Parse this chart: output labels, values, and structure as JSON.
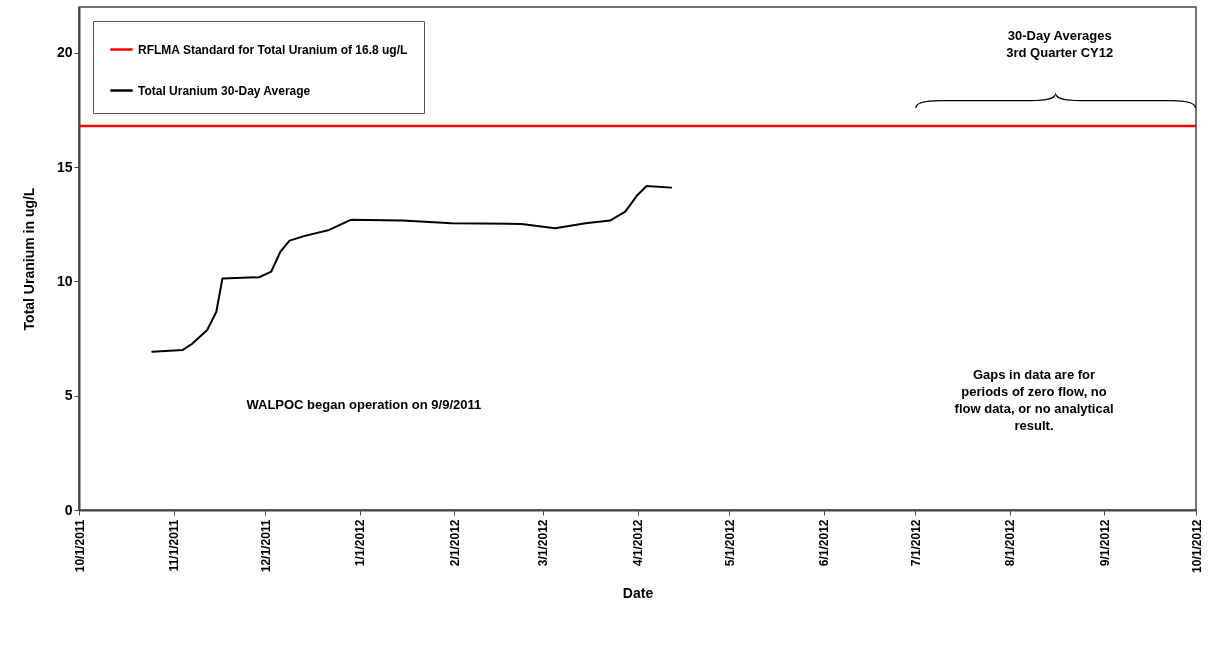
{
  "chart_data": {
    "type": "line",
    "xlabel": "Date",
    "ylabel": "Total Uranium in ug/L",
    "xlim": [
      "2011-10-01",
      "2012-10-01"
    ],
    "ylim": [
      0,
      22
    ],
    "yticks": [
      0,
      5,
      10,
      15,
      20
    ],
    "xticks": [
      {
        "value": "2011-10-01",
        "label": "10/1/2011"
      },
      {
        "value": "2011-11-01",
        "label": "11/1/2011"
      },
      {
        "value": "2011-12-01",
        "label": "12/1/2011"
      },
      {
        "value": "2012-01-01",
        "label": "1/1/2012"
      },
      {
        "value": "2012-02-01",
        "label": "2/1/2012"
      },
      {
        "value": "2012-03-01",
        "label": "3/1/2012"
      },
      {
        "value": "2012-04-01",
        "label": "4/1/2012"
      },
      {
        "value": "2012-05-01",
        "label": "5/1/2012"
      },
      {
        "value": "2012-06-01",
        "label": "6/1/2012"
      },
      {
        "value": "2012-07-01",
        "label": "7/1/2012"
      },
      {
        "value": "2012-08-01",
        "label": "8/1/2012"
      },
      {
        "value": "2012-09-01",
        "label": "9/1/2012"
      },
      {
        "value": "2012-10-01",
        "label": "10/1/2012"
      }
    ],
    "series": [
      {
        "name": "Total Uranium 30-Day Average",
        "color": "#000000",
        "x": [
          "2011-10-25",
          "2011-11-04",
          "2011-11-07",
          "2011-11-12",
          "2011-11-15",
          "2011-11-17",
          "2011-11-29",
          "2011-12-03",
          "2011-12-06",
          "2011-12-09",
          "2011-12-14",
          "2011-12-22",
          "2011-12-29",
          "2012-01-15",
          "2012-01-31",
          "2012-02-23",
          "2012-03-05",
          "2012-03-15",
          "2012-03-23",
          "2012-03-28",
          "2012-04-01",
          "2012-04-04",
          "2012-04-12"
        ],
        "values": [
          6.92,
          7.0,
          7.26,
          7.87,
          8.67,
          10.13,
          10.18,
          10.43,
          11.3,
          11.78,
          11.99,
          12.25,
          12.69,
          12.66,
          12.54,
          12.51,
          12.32,
          12.54,
          12.66,
          13.05,
          13.78,
          14.17,
          14.1
        ]
      }
    ],
    "ref_lines": [
      {
        "axis": "y",
        "value": 16.8,
        "label": "RFLMA Standard for Total Uranium of 16.8 ug/L",
        "color": "#ff0000"
      }
    ],
    "annotations": [
      "WALPOC began operation on 9/9/2011",
      "Gaps in data are for\nperiods of zero flow, no\nflow data, or no analytical\nresult.",
      "30-Day Averages\n3rd Quarter CY12"
    ],
    "legend": "top left",
    "grid": false,
    "marker": "none",
    "line_style": "solid"
  }
}
